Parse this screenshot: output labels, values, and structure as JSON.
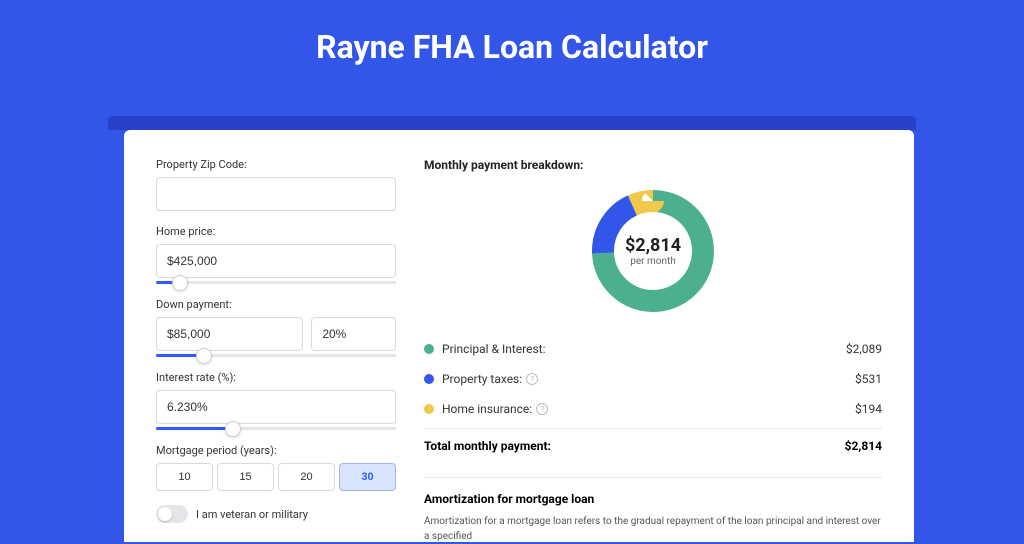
{
  "title": "Rayne FHA Loan Calculator",
  "colors": {
    "page_bg": "#3156e8",
    "stripe": "#2742c8",
    "accent": "#2d5bff",
    "pi": "#4caf8e",
    "tax": "#3156e8",
    "ins": "#f1c94a"
  },
  "form": {
    "zip": {
      "label": "Property Zip Code:",
      "value": ""
    },
    "price": {
      "label": "Home price:",
      "value": "$425,000",
      "slider_pct": 10
    },
    "down": {
      "label": "Down payment:",
      "amount": "$85,000",
      "pct": "20%",
      "slider_pct": 20
    },
    "rate": {
      "label": "Interest rate (%):",
      "value": "6.230%",
      "slider_pct": 32
    },
    "period": {
      "label": "Mortgage period (years):",
      "options": [
        "10",
        "15",
        "20",
        "30"
      ],
      "active": 3
    },
    "veteran": {
      "label": "I am veteran or military",
      "on": false
    }
  },
  "breakdown": {
    "title": "Monthly payment breakdown:",
    "center_amount": "$2,814",
    "center_sub": "per month",
    "rows": [
      {
        "label": "Principal & Interest:",
        "value": "$2,089",
        "color": "#4caf8e",
        "pct": 74.2,
        "info": false
      },
      {
        "label": "Property taxes:",
        "value": "$531",
        "color": "#3156e8",
        "pct": 18.9,
        "info": true
      },
      {
        "label": "Home insurance:",
        "value": "$194",
        "color": "#f1c94a",
        "pct": 6.9,
        "info": true
      }
    ],
    "total_label": "Total monthly payment:",
    "total_value": "$2,814",
    "donut": {
      "r": 50,
      "stroke": 22,
      "circumference": 314.16
    }
  },
  "amort": {
    "title": "Amortization for mortgage loan",
    "text": "Amortization for a mortgage loan refers to the gradual repayment of the loan principal and interest over a specified"
  }
}
